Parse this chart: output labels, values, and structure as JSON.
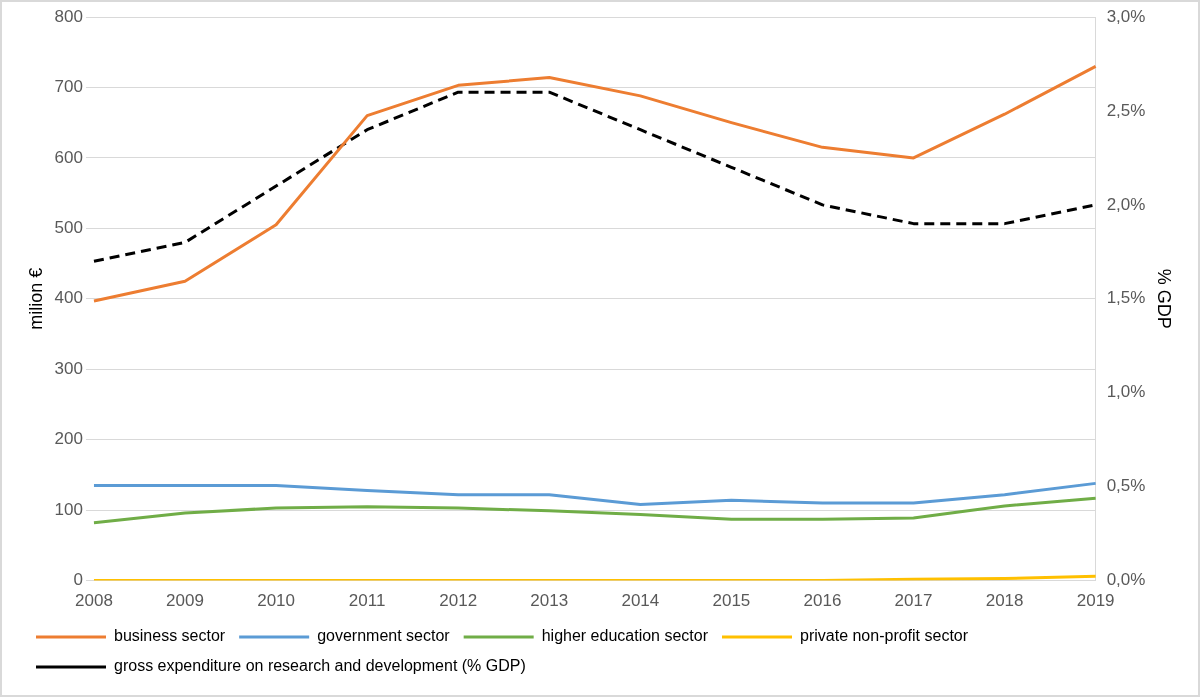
{
  "chart_data": {
    "type": "line",
    "ylabel": "milion €",
    "y2label": "% GDP",
    "categories": [
      "2008",
      "2009",
      "2010",
      "2011",
      "2012",
      "2013",
      "2014",
      "2015",
      "2016",
      "2017",
      "2018",
      "2019"
    ],
    "series": [
      {
        "name": "business sector",
        "color": "#ed7d31",
        "values": [
          397,
          425,
          505,
          660,
          703,
          714,
          688,
          650,
          615,
          600,
          662,
          730
        ]
      },
      {
        "name": "government sector",
        "color": "#5b9bd5",
        "values": [
          135,
          135,
          135,
          128,
          122,
          122,
          108,
          114,
          110,
          110,
          122,
          138
        ]
      },
      {
        "name": "higher education sector",
        "color": "#70ad47",
        "values": [
          82,
          96,
          103,
          105,
          103,
          99,
          94,
          87,
          87,
          89,
          106,
          117
        ]
      },
      {
        "name": "private non-profit sector",
        "color": "#ffc000",
        "values": [
          0,
          0,
          0,
          0,
          0,
          0,
          0,
          0,
          0,
          2,
          3,
          6
        ]
      },
      {
        "name": "gross expenditure on research and development (% GDP)",
        "color": "#000000",
        "axis": "y2",
        "line_style": "dashed",
        "values": [
          1.7,
          1.8,
          2.1,
          2.4,
          2.6,
          2.6,
          2.4,
          2.2,
          2.0,
          1.9,
          1.9,
          2.0
        ]
      }
    ],
    "ylim": [
      0,
      800
    ],
    "yticks": [
      0,
      100,
      200,
      300,
      400,
      500,
      600,
      700,
      800
    ],
    "y2lim": [
      0,
      3
    ],
    "y2ticks": [
      {
        "value": 0,
        "label": "0,0%"
      },
      {
        "value": 0.5,
        "label": "0,5%"
      },
      {
        "value": 1,
        "label": "1,0%"
      },
      {
        "value": 1.5,
        "label": "1,5%"
      },
      {
        "value": 2,
        "label": "2,0%"
      },
      {
        "value": 2.5,
        "label": "2,5%"
      },
      {
        "value": 3,
        "label": "3,0%"
      }
    ],
    "grid": "y",
    "legend": "bottom",
    "marker": "none",
    "line_style": "solid"
  }
}
